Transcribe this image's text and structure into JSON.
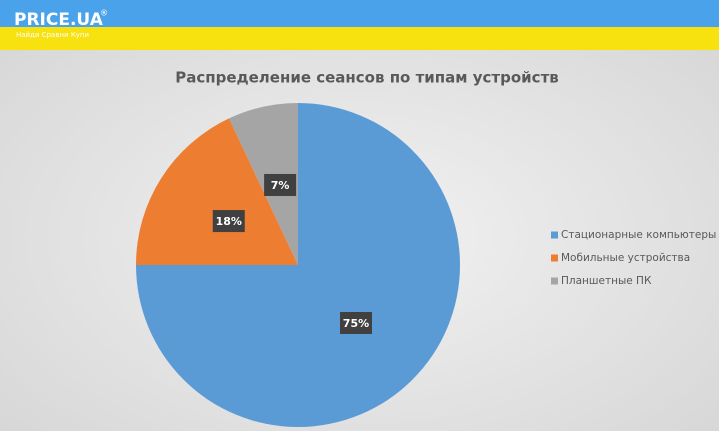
{
  "header": {
    "logo": "PRICE.UA",
    "logo_mark": "®",
    "tagline": "Найди Сравни Купи"
  },
  "chart_data": {
    "type": "pie",
    "title": "Распределение сеансов по типам устройств",
    "categories": [
      "Стационарные компьютеры",
      "Мобильные устройства",
      "Планшетные ПК"
    ],
    "values": [
      75,
      18,
      7
    ],
    "value_labels": [
      "75%",
      "18%",
      "7%"
    ],
    "colors": [
      "#5b9bd5",
      "#ed7d31",
      "#a5a5a5"
    ],
    "legend": "right"
  }
}
